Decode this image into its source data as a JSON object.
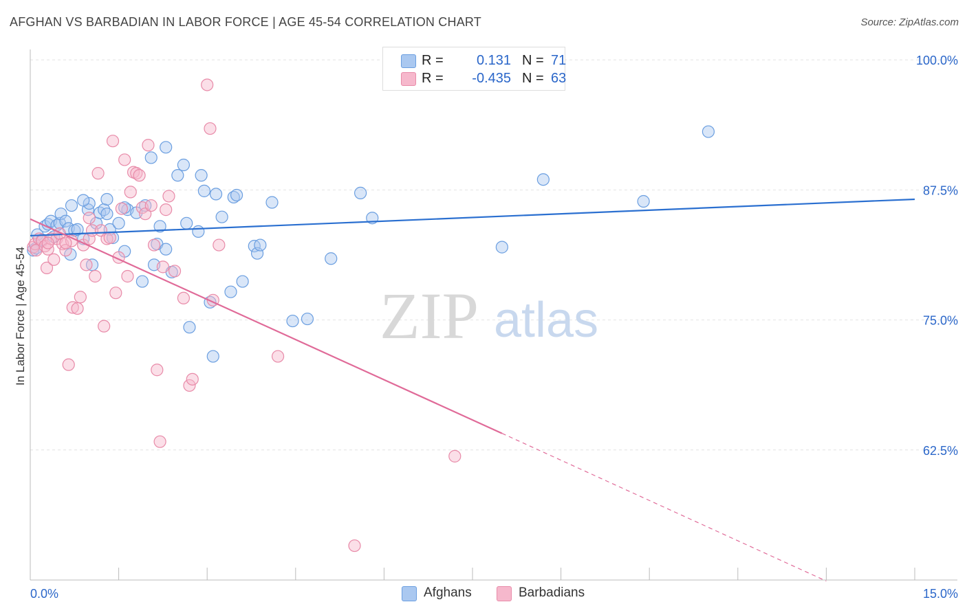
{
  "header": {
    "title": "AFGHAN VS BARBADIAN IN LABOR FORCE | AGE 45-54 CORRELATION CHART",
    "source": "Source: ZipAtlas.com"
  },
  "watermark": {
    "zip": "ZIP",
    "atlas": "atlas"
  },
  "legend": {
    "rows": [
      {
        "label": "R =",
        "r": " 0.131",
        "n_label": "N =",
        "n": "71",
        "color": "#aac8f0",
        "border": "#6a9ee0"
      },
      {
        "label": "R =",
        "r": "-0.435",
        "n_label": "N =",
        "n": "63",
        "color": "#f6b8cc",
        "border": "#e88aa8"
      }
    ]
  },
  "bottom_legend": [
    {
      "label": "Afghans",
      "color": "#aac8f0",
      "border": "#6a9ee0"
    },
    {
      "label": "Barbadians",
      "color": "#f6b8cc",
      "border": "#e88aa8"
    }
  ],
  "chart_data": {
    "type": "scatter",
    "title": "AFGHAN VS BARBADIAN IN LABOR FORCE | AGE 45-54 CORRELATION CHART",
    "xlabel": "",
    "ylabel": "In Labor Force | Age 45-54",
    "xlim": [
      0,
      15
    ],
    "ylim": [
      50,
      101
    ],
    "x_tick_labels": [
      "0.0%",
      "15.0%"
    ],
    "y_ticks": [
      62.5,
      75.0,
      87.5,
      100.0
    ],
    "y_tick_labels": [
      "62.5%",
      "75.0%",
      "87.5%",
      "100.0%"
    ],
    "colors": {
      "afghans": "#2a6fd0",
      "barbadians": "#e06a98"
    },
    "series": [
      {
        "name": "Afghans",
        "r": 0.131,
        "n": 71,
        "trend": {
          "x0": 0.0,
          "y0": 83.1,
          "x1": 15.0,
          "y1": 86.6
        },
        "points": [
          [
            0.05,
            81.7
          ],
          [
            0.1,
            81.9
          ],
          [
            0.12,
            83.2
          ],
          [
            0.2,
            82.7
          ],
          [
            0.25,
            84.0
          ],
          [
            0.3,
            84.2
          ],
          [
            0.35,
            84.5
          ],
          [
            0.4,
            83.0
          ],
          [
            0.45,
            84.1
          ],
          [
            0.5,
            84.3
          ],
          [
            0.52,
            85.2
          ],
          [
            0.6,
            84.5
          ],
          [
            0.65,
            83.8
          ],
          [
            0.68,
            81.3
          ],
          [
            0.7,
            86.0
          ],
          [
            0.75,
            83.6
          ],
          [
            0.8,
            83.7
          ],
          [
            0.9,
            82.8
          ],
          [
            0.98,
            85.6
          ],
          [
            1.0,
            86.2
          ],
          [
            1.05,
            80.3
          ],
          [
            1.12,
            84.3
          ],
          [
            1.18,
            85.3
          ],
          [
            1.25,
            85.6
          ],
          [
            1.3,
            85.2
          ],
          [
            1.35,
            83.7
          ],
          [
            1.4,
            82.9
          ],
          [
            1.5,
            84.3
          ],
          [
            1.6,
            81.6
          ],
          [
            1.65,
            85.6
          ],
          [
            1.8,
            85.3
          ],
          [
            1.9,
            78.7
          ],
          [
            1.95,
            86.0
          ],
          [
            2.05,
            90.6
          ],
          [
            2.1,
            80.3
          ],
          [
            2.15,
            82.3
          ],
          [
            2.2,
            84.0
          ],
          [
            2.3,
            81.8
          ],
          [
            2.4,
            79.6
          ],
          [
            2.5,
            88.9
          ],
          [
            2.6,
            89.9
          ],
          [
            2.3,
            91.6
          ],
          [
            2.65,
            84.3
          ],
          [
            2.7,
            74.3
          ],
          [
            2.85,
            83.5
          ],
          [
            2.9,
            88.9
          ],
          [
            2.95,
            87.4
          ],
          [
            3.05,
            76.7
          ],
          [
            3.1,
            71.5
          ],
          [
            3.15,
            87.1
          ],
          [
            3.25,
            84.9
          ],
          [
            3.4,
            77.7
          ],
          [
            3.45,
            86.8
          ],
          [
            3.5,
            87.0
          ],
          [
            3.6,
            78.7
          ],
          [
            3.8,
            82.1
          ],
          [
            3.85,
            81.4
          ],
          [
            3.9,
            82.2
          ],
          [
            4.1,
            86.3
          ],
          [
            4.45,
            74.9
          ],
          [
            4.7,
            75.1
          ],
          [
            5.1,
            80.9
          ],
          [
            5.6,
            87.2
          ],
          [
            5.8,
            84.8
          ],
          [
            8.0,
            82.0
          ],
          [
            8.7,
            88.5
          ],
          [
            10.4,
            86.4
          ],
          [
            11.5,
            93.1
          ],
          [
            0.9,
            86.5
          ],
          [
            1.3,
            86.6
          ],
          [
            1.6,
            85.8
          ]
        ]
      },
      {
        "name": "Barbadians",
        "r": -0.435,
        "n": 63,
        "trend": {
          "x0": 0.0,
          "y0": 84.7,
          "x1": 8.0,
          "y1": 64.1
        },
        "trend_extension": {
          "x0": 8.0,
          "y0": 64.1,
          "x1": 13.5,
          "y1": 49.9
        },
        "points": [
          [
            0.05,
            82.0
          ],
          [
            0.08,
            82.3
          ],
          [
            0.1,
            81.7
          ],
          [
            0.15,
            82.8
          ],
          [
            0.2,
            82.6
          ],
          [
            0.25,
            82.1
          ],
          [
            0.28,
            80.0
          ],
          [
            0.3,
            81.8
          ],
          [
            0.35,
            82.8
          ],
          [
            0.4,
            80.8
          ],
          [
            0.45,
            82.8
          ],
          [
            0.5,
            83.3
          ],
          [
            0.55,
            82.3
          ],
          [
            0.6,
            81.7
          ],
          [
            0.65,
            70.7
          ],
          [
            0.7,
            82.6
          ],
          [
            0.72,
            76.2
          ],
          [
            0.8,
            76.1
          ],
          [
            0.85,
            77.2
          ],
          [
            0.9,
            82.2
          ],
          [
            0.95,
            80.3
          ],
          [
            1.0,
            82.8
          ],
          [
            1.05,
            83.6
          ],
          [
            1.1,
            79.2
          ],
          [
            1.15,
            89.1
          ],
          [
            1.2,
            83.6
          ],
          [
            1.25,
            74.4
          ],
          [
            1.3,
            82.8
          ],
          [
            1.35,
            82.9
          ],
          [
            1.4,
            92.2
          ],
          [
            1.45,
            77.6
          ],
          [
            1.5,
            81.0
          ],
          [
            1.55,
            85.7
          ],
          [
            1.6,
            90.4
          ],
          [
            1.65,
            79.2
          ],
          [
            1.7,
            87.3
          ],
          [
            1.75,
            89.2
          ],
          [
            1.8,
            89.1
          ],
          [
            1.85,
            88.9
          ],
          [
            1.9,
            85.8
          ],
          [
            1.95,
            85.2
          ],
          [
            2.0,
            91.8
          ],
          [
            2.05,
            86.0
          ],
          [
            2.1,
            82.2
          ],
          [
            2.15,
            70.2
          ],
          [
            2.2,
            63.3
          ],
          [
            2.25,
            80.1
          ],
          [
            2.3,
            85.6
          ],
          [
            2.35,
            86.9
          ],
          [
            2.45,
            79.7
          ],
          [
            2.6,
            77.1
          ],
          [
            2.7,
            68.7
          ],
          [
            2.75,
            69.3
          ],
          [
            3.0,
            97.6
          ],
          [
            3.05,
            93.4
          ],
          [
            3.1,
            76.9
          ],
          [
            3.2,
            82.2
          ],
          [
            4.2,
            71.5
          ],
          [
            5.5,
            53.3
          ],
          [
            7.2,
            61.9
          ],
          [
            0.6,
            82.4
          ],
          [
            0.3,
            82.4
          ],
          [
            1.0,
            84.8
          ]
        ]
      }
    ]
  }
}
